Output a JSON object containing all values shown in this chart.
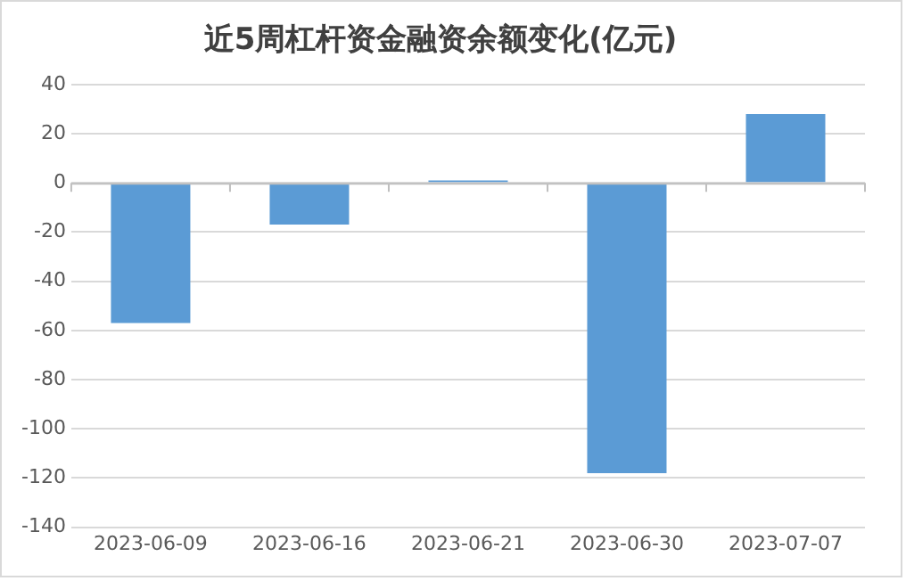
{
  "chart_data": {
    "type": "bar",
    "title": "近5周杠杆资金融资余额变化(亿元)",
    "categories": [
      "2023-06-09",
      "2023-06-16",
      "2023-06-21",
      "2023-06-30",
      "2023-07-07"
    ],
    "values": [
      -57,
      -17,
      1,
      -118,
      28
    ],
    "color": "#5b9bd5",
    "ylim": [
      -140,
      40
    ],
    "yticks": [
      -140,
      -120,
      -100,
      -80,
      -60,
      -40,
      -20,
      0,
      20,
      40
    ],
    "grid": "y",
    "legend": false
  }
}
